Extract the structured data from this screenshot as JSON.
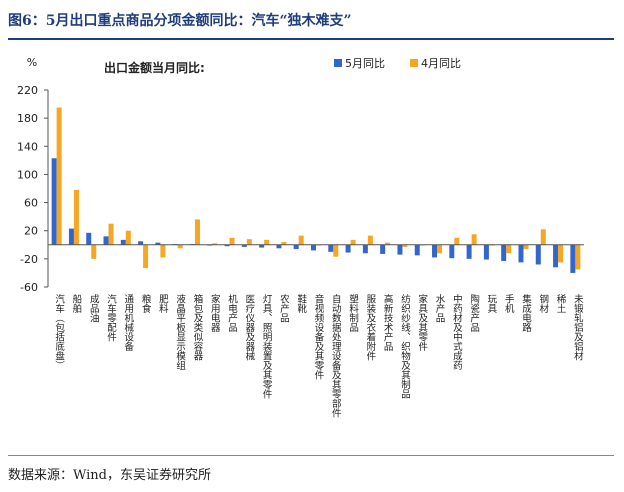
{
  "page": {
    "figure_title": "图6：5月出口重点商品分项金额同比：汽车“独木难支”",
    "source": "数据来源：Wind，东吴证券研究所"
  },
  "chart_data": {
    "type": "bar",
    "title": "出口金额当月同比:",
    "ylabel": "%",
    "ylim": [
      -60,
      220
    ],
    "yticks": [
      -60,
      -20,
      20,
      60,
      100,
      140,
      180,
      220
    ],
    "legend_position": "top-right",
    "categories": [
      "汽车（包括底盘）",
      "船舶",
      "成品油",
      "汽车零配件",
      "通用机械设备",
      "粮食",
      "肥料",
      "液晶平板显示模组",
      "箱包及类似容器",
      "家用电器",
      "机电产品",
      "医疗仪器及器械",
      "灯具、照明装置及其零件",
      "农产品",
      "鞋靴",
      "音视频设备及其零件",
      "自动数据处理设备及其零部件",
      "塑料制品",
      "服装及衣着附件",
      "高新技术产品",
      "纺织纱线、织物及其制品",
      "家具及其零件",
      "水产品",
      "中药材及中式成药",
      "陶瓷产品",
      "玩具",
      "手机",
      "集成电路",
      "钢材",
      "稀土",
      "未锻轧铝及铝材"
    ],
    "series": [
      {
        "name": "5月同比",
        "color": "#3366cc",
        "values": [
          123,
          23,
          17,
          12,
          7,
          5,
          3,
          1,
          1,
          -1,
          -2,
          -3,
          -4,
          -5,
          -6,
          -8,
          -10,
          -11,
          -12,
          -13,
          -14,
          -15,
          -18,
          -19,
          -20,
          -21,
          -23,
          -25,
          -28,
          -32,
          -40
        ]
      },
      {
        "name": "4月同比",
        "color": "#f5a623",
        "values": [
          195,
          78,
          -20,
          30,
          20,
          -33,
          -18,
          -5,
          36,
          2,
          10,
          8,
          7,
          4,
          13,
          -1,
          -17,
          7,
          13,
          3,
          -3,
          -1,
          -12,
          10,
          15,
          -1,
          -12,
          -6,
          22,
          -25,
          -35
        ]
      }
    ]
  }
}
